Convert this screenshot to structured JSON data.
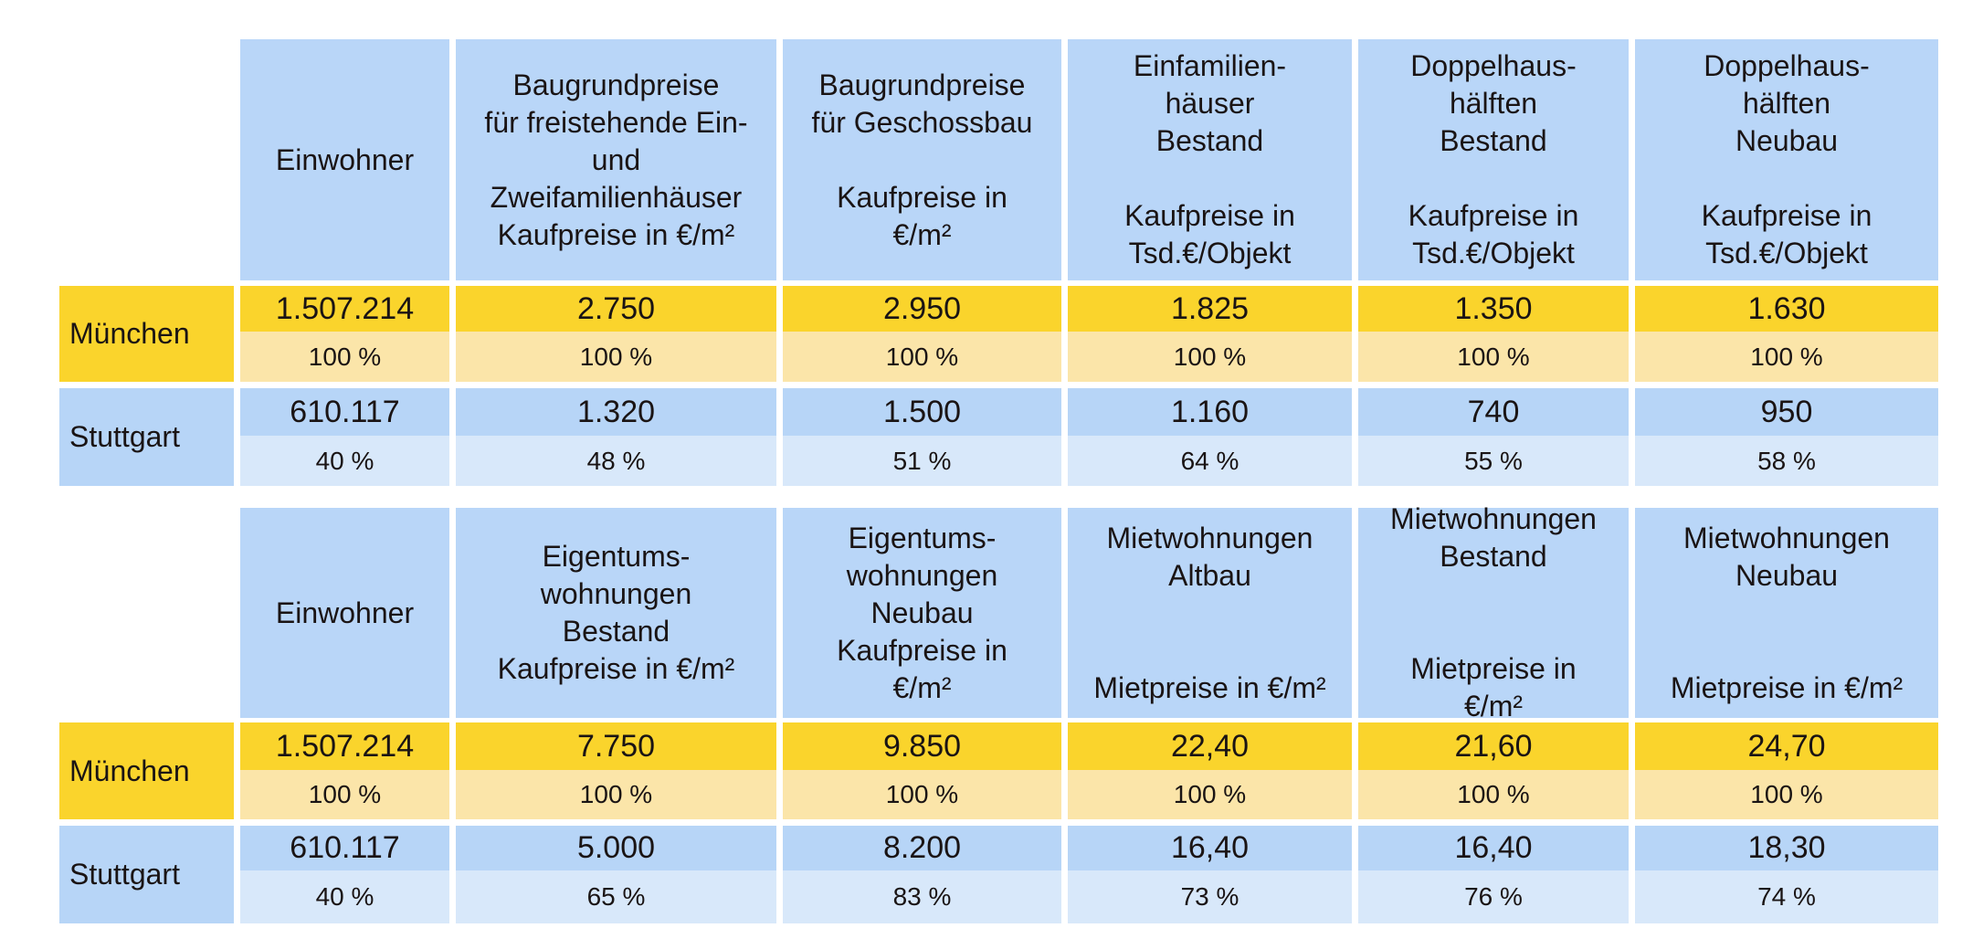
{
  "tables": [
    {
      "headers": [
        "Einwohner",
        "Baugrundpreise\nfür freistehende Ein-\nund\nZweifamilienhäuser\nKaufpreise in €/m²",
        "Baugrundpreise\nfür Geschossbau\n\nKaufpreise in\n€/m²",
        "Einfamilien-\nhäuser\nBestand\n\nKaufpreise in\nTsd.€/Objekt",
        "Doppelhaus-\nhälften\nBestand\n\nKaufpreise in\nTsd.€/Objekt",
        "Doppelhaus-\nhälften\nNeubau\n\nKaufpreise in\nTsd.€/Objekt"
      ],
      "rows": [
        {
          "city": "München",
          "values": [
            "1.507.214",
            "2.750",
            "2.950",
            "1.825",
            "1.350",
            "1.630"
          ],
          "percents": [
            "100 %",
            "100 %",
            "100 %",
            "100 %",
            "100 %",
            "100 %"
          ]
        },
        {
          "city": "Stuttgart",
          "values": [
            "610.117",
            "1.320",
            "1.500",
            "1.160",
            "740",
            "950"
          ],
          "percents": [
            "40 %",
            "48 %",
            "51 %",
            "64 %",
            "55 %",
            "58 %"
          ]
        }
      ]
    },
    {
      "headers": [
        "Einwohner",
        "Eigentums-\nwohnungen\nBestand\nKaufpreise in €/m²",
        "Eigentums-\nwohnungen\nNeubau\nKaufpreise in\n€/m²",
        "Mietwohnungen\nAltbau\n\n\nMietpreise in €/m²",
        "Mietwohnungen\nBestand\n\n\nMietpreise in\n€/m²",
        "Mietwohnungen\nNeubau\n\n\nMietpreise in €/m²"
      ],
      "rows": [
        {
          "city": "München",
          "values": [
            "1.507.214",
            "7.750",
            "9.850",
            "22,40",
            "21,60",
            "24,70"
          ],
          "percents": [
            "100 %",
            "100 %",
            "100 %",
            "100 %",
            "100 %",
            "100 %"
          ]
        },
        {
          "city": "Stuttgart",
          "values": [
            "610.117",
            "5.000",
            "8.200",
            "16,40",
            "16,40",
            "18,30"
          ],
          "percents": [
            "40 %",
            "65 %",
            "83 %",
            "73 %",
            "76 %",
            "74 %"
          ]
        }
      ]
    }
  ],
  "colors": {
    "header_blue": "#b9d6f8",
    "munich_value": "#fad42c",
    "munich_percent": "#fbe5a9",
    "stuttgart_value": "#b7d5f7",
    "stuttgart_percent": "#d8e8fa"
  }
}
